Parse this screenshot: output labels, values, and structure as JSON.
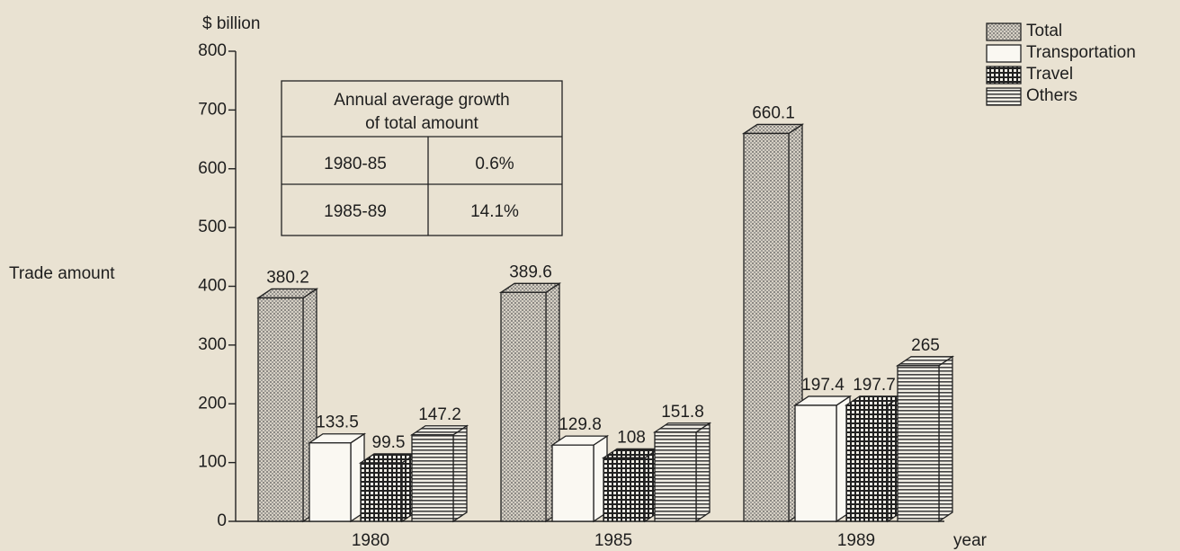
{
  "chart_data": {
    "type": "bar3d",
    "y_axis_unit": "$ billion",
    "y_axis_label": "Trade amount",
    "x_axis_label": "year",
    "categories": [
      "1980",
      "1985",
      "1989"
    ],
    "series": [
      {
        "name": "Total",
        "color": "#b8b2a6",
        "pattern": "dots",
        "values": [
          380.2,
          389.6,
          660.1
        ]
      },
      {
        "name": "Transportation",
        "color": "#faf8f2",
        "pattern": "none",
        "values": [
          133.5,
          129.8,
          197.4
        ]
      },
      {
        "name": "Travel",
        "color": "#3a3a3a",
        "pattern": "grid",
        "values": [
          99.5,
          108,
          197.7
        ]
      },
      {
        "name": "Others",
        "color": "#7d7a74",
        "pattern": "hlines",
        "values": [
          147.2,
          151.8,
          265
        ]
      }
    ],
    "ylim": [
      0,
      800
    ],
    "yticks": [
      0,
      100,
      200,
      300,
      400,
      500,
      600,
      700,
      800
    ],
    "legend": "top-right",
    "inset_table": {
      "header": [
        "Annual average growth",
        "of total amount"
      ],
      "rows": [
        [
          "1980-85",
          "0.6%"
        ],
        [
          "1985-89",
          "14.1%"
        ]
      ]
    }
  }
}
